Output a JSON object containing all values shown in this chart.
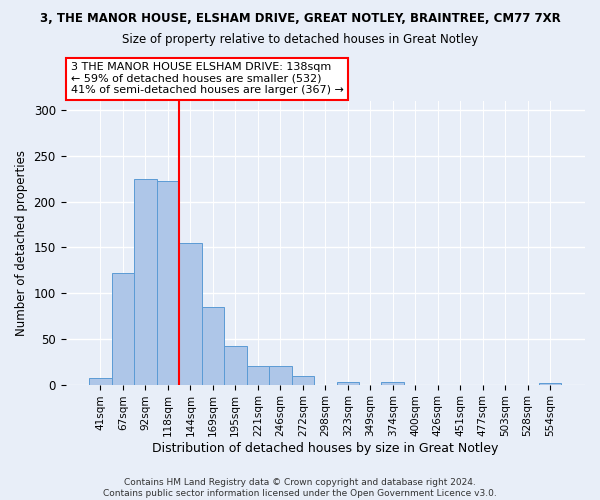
{
  "title1": "3, THE MANOR HOUSE, ELSHAM DRIVE, GREAT NOTLEY, BRAINTREE, CM77 7XR",
  "title2": "Size of property relative to detached houses in Great Notley",
  "xlabel": "Distribution of detached houses by size in Great Notley",
  "ylabel": "Number of detached properties",
  "bar_labels": [
    "41sqm",
    "67sqm",
    "92sqm",
    "118sqm",
    "144sqm",
    "169sqm",
    "195sqm",
    "221sqm",
    "246sqm",
    "272sqm",
    "298sqm",
    "323sqm",
    "349sqm",
    "374sqm",
    "400sqm",
    "426sqm",
    "451sqm",
    "477sqm",
    "503sqm",
    "528sqm",
    "554sqm"
  ],
  "bar_values": [
    7,
    122,
    225,
    222,
    155,
    85,
    42,
    20,
    20,
    9,
    0,
    3,
    0,
    3,
    0,
    0,
    0,
    0,
    0,
    0,
    2
  ],
  "bar_color": "#aec6e8",
  "bar_edgecolor": "#5b9bd5",
  "vline_color": "red",
  "vline_pos": 3.5,
  "annotation_line1": "3 THE MANOR HOUSE ELSHAM DRIVE: 138sqm",
  "annotation_line2": "← 59% of detached houses are smaller (532)",
  "annotation_line3": "41% of semi-detached houses are larger (367) →",
  "annotation_box_color": "white",
  "annotation_box_edgecolor": "red",
  "footer_text": "Contains HM Land Registry data © Crown copyright and database right 2024.\nContains public sector information licensed under the Open Government Licence v3.0.",
  "ylim": [
    0,
    310
  ],
  "background_color": "#e8eef8"
}
